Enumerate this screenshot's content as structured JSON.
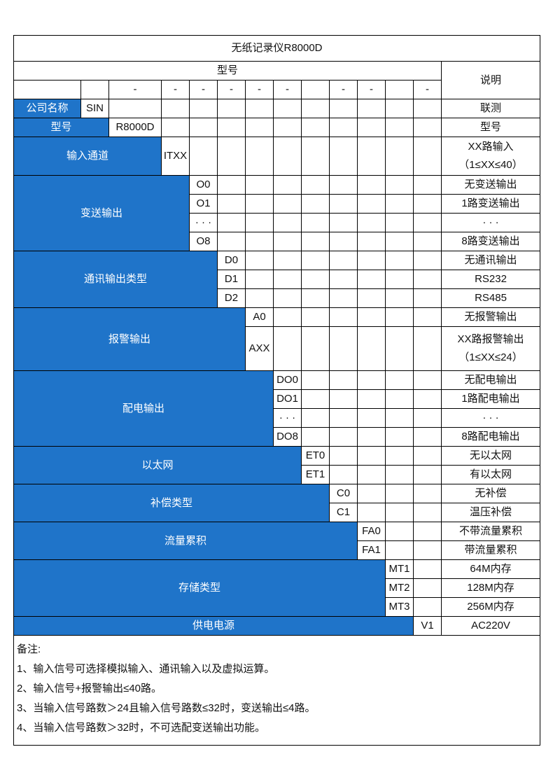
{
  "title": "无纸记录仪R8000D",
  "header": {
    "model_label": "型号",
    "desc_label": "说明",
    "dashes": [
      "",
      "",
      "-",
      "-",
      "-",
      "-",
      "-",
      "-",
      "",
      "-",
      "-",
      "",
      "-"
    ]
  },
  "company": {
    "label": "公司名称",
    "code": "SIN",
    "desc": "联测"
  },
  "model": {
    "label": "型号",
    "code": "R8000D",
    "desc": "型号"
  },
  "groups": [
    {
      "label": "输入通道",
      "rows": [
        {
          "code": "ITXX",
          "desc": [
            "XX路输入",
            "（1≤XX≤40）"
          ]
        }
      ]
    },
    {
      "label": "变送输出",
      "rows": [
        {
          "code": "O0",
          "desc": [
            "无变送输出"
          ]
        },
        {
          "code": "O1",
          "desc": [
            "1路变送输出"
          ]
        },
        {
          "code": "· · ·",
          "desc": [
            "· · ·"
          ]
        },
        {
          "code": "O8",
          "desc": [
            "8路变送输出"
          ]
        }
      ]
    },
    {
      "label": "通讯输出类型",
      "rows": [
        {
          "code": "D0",
          "desc": [
            "无通讯输出"
          ]
        },
        {
          "code": "D1",
          "desc": [
            "RS232"
          ]
        },
        {
          "code": "D2",
          "desc": [
            "RS485"
          ]
        }
      ]
    },
    {
      "label": "报警输出",
      "rows": [
        {
          "code": "A0",
          "desc": [
            "无报警输出"
          ]
        },
        {
          "code": "AXX",
          "desc": [
            "XX路报警输出",
            "（1≤XX≤24）"
          ]
        }
      ]
    },
    {
      "label": "配电输出",
      "rows": [
        {
          "code": "DO0",
          "desc": [
            "无配电输出"
          ]
        },
        {
          "code": "DO1",
          "desc": [
            "1路配电输出"
          ]
        },
        {
          "code": "· · ·",
          "desc": [
            "· · ·"
          ]
        },
        {
          "code": "DO8",
          "desc": [
            "8路配电输出"
          ]
        }
      ]
    },
    {
      "label": "以太网",
      "rows": [
        {
          "code": "ET0",
          "desc": [
            "无以太网"
          ]
        },
        {
          "code": "ET1",
          "desc": [
            "有以太网"
          ]
        }
      ]
    },
    {
      "label": "补偿类型",
      "rows": [
        {
          "code": "C0",
          "desc": [
            "无补偿"
          ]
        },
        {
          "code": "C1",
          "desc": [
            "温压补偿"
          ]
        }
      ]
    },
    {
      "label": "流量累积",
      "rows": [
        {
          "code": "FA0",
          "desc": [
            "不带流量累积"
          ]
        },
        {
          "code": "FA1",
          "desc": [
            "带流量累积"
          ]
        }
      ]
    },
    {
      "label": "存储类型",
      "rows": [
        {
          "code": "MT1",
          "desc": [
            "64M内存"
          ]
        },
        {
          "code": "MT2",
          "desc": [
            "128M内存"
          ]
        },
        {
          "code": "MT3",
          "desc": [
            "256M内存"
          ]
        }
      ]
    },
    {
      "label": "供电电源",
      "rows": [
        {
          "code": "V1",
          "desc": [
            "AC220V"
          ]
        }
      ]
    }
  ],
  "notes": [
    "备注:",
    "1、输入信号可选择模拟输入、通讯输入以及虚拟运算。",
    "2、输入信号+报警输出≤40路。",
    "3、当输入信号路数＞24且输入信号路数≤32时，变送输出≤4路。",
    "4、当输入信号路数＞32时，不可选配变送输出功能。"
  ],
  "colors": {
    "label_bg": "#1f74c9",
    "label_text": "#ffffff",
    "border": "#000000"
  }
}
